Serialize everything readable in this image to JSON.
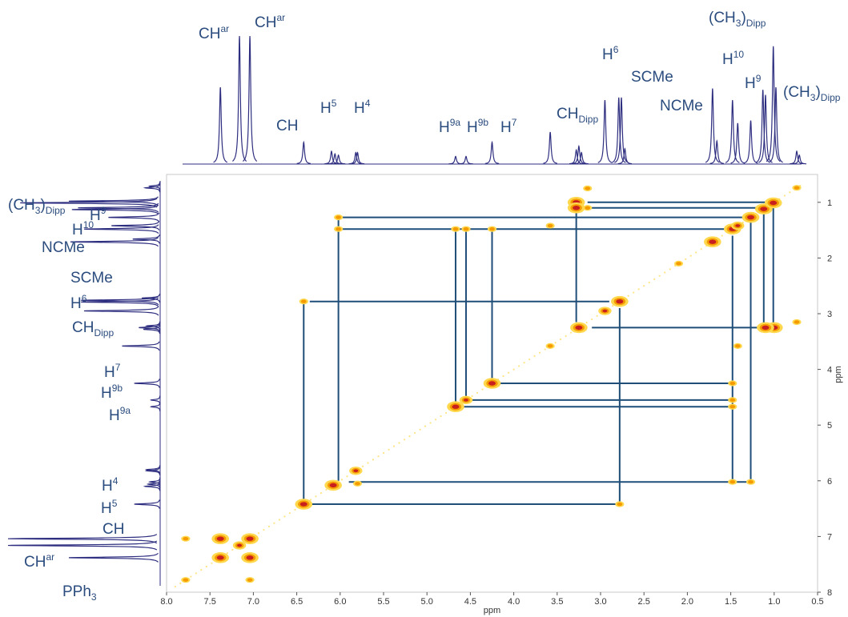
{
  "chart_data": {
    "type": "cosy",
    "x_label": "ppm",
    "y_label": "ppm",
    "xlim": [
      8,
      0.5
    ],
    "ylim": [
      0.5,
      8
    ],
    "xticks": [
      {
        "value": 8,
        "label": "8.0"
      },
      7.5,
      {
        "value": 7,
        "label": "7.0"
      },
      6.5,
      {
        "value": 6,
        "label": "6.0"
      },
      5.5,
      {
        "value": 5,
        "label": "5.0"
      },
      4.5,
      {
        "value": 4,
        "label": "4.0"
      },
      3.5,
      {
        "value": 3,
        "label": "3.0"
      },
      2.5,
      {
        "value": 2,
        "label": "2.0"
      },
      1.5,
      {
        "value": 1,
        "label": "1.0"
      },
      0.5
    ],
    "yticks": [
      1,
      2,
      3,
      4,
      5,
      6,
      7,
      8
    ],
    "spectrum_color": "#2e2e80",
    "connector_color": "#1f4e79",
    "peak_colors": [
      "#ffd84d",
      "#f59b00",
      "#c8201e"
    ],
    "peaks": [
      [
        7.38,
        60
      ],
      [
        7.16,
        100
      ],
      [
        7.04,
        100
      ],
      [
        6.42,
        17
      ],
      [
        6.1,
        10
      ],
      [
        6.06,
        8
      ],
      [
        6.02,
        7
      ],
      [
        5.82,
        9
      ],
      [
        5.8,
        9
      ],
      [
        4.67,
        6
      ],
      [
        4.55,
        6
      ],
      [
        4.25,
        17
      ],
      [
        3.58,
        25
      ],
      [
        3.28,
        11
      ],
      [
        3.25,
        14
      ],
      [
        3.22,
        9
      ],
      [
        2.95,
        50
      ],
      [
        2.79,
        52
      ],
      [
        2.76,
        52
      ],
      [
        2.72,
        12
      ],
      [
        1.71,
        59
      ],
      [
        1.66,
        18
      ],
      [
        1.48,
        50
      ],
      [
        1.42,
        32
      ],
      [
        1.27,
        34
      ],
      [
        1.13,
        58
      ],
      [
        1.1,
        54
      ],
      [
        1.01,
        92
      ],
      [
        0.98,
        60
      ],
      [
        0.74,
        10
      ],
      [
        0.71,
        7
      ]
    ],
    "crosspeaks": [
      [
        7.38,
        7.38,
        3
      ],
      [
        7.04,
        7.04,
        3
      ],
      [
        7.16,
        7.16,
        2
      ],
      [
        6.42,
        6.42,
        3
      ],
      [
        6.08,
        6.08,
        3
      ],
      [
        5.82,
        5.82,
        2
      ],
      [
        4.67,
        4.67,
        3
      ],
      [
        4.55,
        4.55,
        2
      ],
      [
        4.25,
        4.25,
        3
      ],
      [
        3.58,
        3.58,
        1
      ],
      [
        3.25,
        3.25,
        3
      ],
      [
        2.95,
        2.95,
        2
      ],
      [
        2.78,
        2.78,
        3
      ],
      [
        1.71,
        1.71,
        3
      ],
      [
        1.48,
        1.48,
        3
      ],
      [
        1.42,
        1.42,
        2
      ],
      [
        1.27,
        1.27,
        3
      ],
      [
        1.12,
        1.12,
        3
      ],
      [
        1.01,
        1.01,
        3
      ],
      [
        0.74,
        0.74,
        1
      ],
      [
        7.78,
        7.78,
        1
      ],
      [
        2.1,
        2.1,
        1
      ],
      [
        7.38,
        7.04,
        3
      ],
      [
        7.04,
        7.38,
        3
      ],
      [
        7.78,
        7.04,
        1
      ],
      [
        7.04,
        7.78,
        1
      ],
      [
        3.28,
        1.0,
        3
      ],
      [
        3.28,
        1.1,
        3
      ],
      [
        3.15,
        0.75,
        1
      ],
      [
        3.15,
        1.1,
        1
      ],
      [
        1.0,
        3.25,
        3
      ],
      [
        1.1,
        3.25,
        3
      ],
      [
        0.74,
        3.15,
        1
      ],
      [
        6.42,
        2.78,
        1
      ],
      [
        2.78,
        6.42,
        1
      ],
      [
        6.02,
        1.27,
        1
      ],
      [
        6.02,
        1.48,
        1
      ],
      [
        1.48,
        6.02,
        1
      ],
      [
        1.27,
        6.02,
        1
      ],
      [
        5.8,
        6.05,
        1
      ],
      [
        4.67,
        1.48,
        1
      ],
      [
        4.55,
        1.48,
        1
      ],
      [
        4.25,
        1.48,
        1
      ],
      [
        1.48,
        4.67,
        1
      ],
      [
        1.48,
        4.55,
        1
      ],
      [
        1.48,
        4.25,
        1
      ],
      [
        3.58,
        1.42,
        1
      ],
      [
        1.42,
        3.58,
        1
      ]
    ],
    "connectors": [
      [
        6.02,
        1.27,
        1.27,
        1.27
      ],
      [
        6.02,
        1.48,
        1.48,
        1.48
      ],
      [
        3.15,
        1.0,
        1.01,
        1.0
      ],
      [
        3.15,
        1.1,
        1.12,
        1.1
      ],
      [
        6.35,
        2.78,
        2.9,
        2.78
      ],
      [
        3.1,
        3.25,
        1.1,
        3.25
      ],
      [
        4.2,
        4.25,
        1.5,
        4.25
      ],
      [
        4.5,
        4.55,
        1.5,
        4.55
      ],
      [
        4.6,
        4.67,
        1.5,
        4.67
      ],
      [
        5.9,
        6.02,
        1.3,
        6.02
      ],
      [
        6.35,
        6.42,
        2.8,
        6.42
      ],
      [
        6.42,
        2.78,
        6.42,
        6.42
      ],
      [
        6.02,
        1.27,
        6.02,
        6.0
      ],
      [
        4.67,
        1.5,
        4.67,
        4.67
      ],
      [
        4.55,
        1.5,
        4.55,
        4.55
      ],
      [
        4.25,
        1.5,
        4.25,
        4.2
      ],
      [
        3.28,
        1.0,
        3.28,
        3.15
      ],
      [
        2.78,
        2.9,
        2.78,
        6.42
      ],
      [
        1.48,
        1.6,
        1.48,
        6.02
      ],
      [
        1.27,
        1.35,
        1.27,
        6.02
      ],
      [
        1.12,
        1.2,
        1.12,
        3.2
      ],
      [
        1.01,
        1.1,
        1.01,
        3.2
      ]
    ],
    "top_labels": [
      [
        {
          "t": "CH"
        },
        {
          "t": "ar",
          "s": "sup"
        }
      ],
      [
        {
          "t": "CH"
        },
        {
          "t": "ar",
          "s": "sup"
        }
      ],
      [
        {
          "t": "CH"
        }
      ],
      [
        {
          "t": "H"
        },
        {
          "t": "5",
          "s": "sup"
        }
      ],
      [
        {
          "t": "H"
        },
        {
          "t": "4",
          "s": "sup"
        }
      ],
      [
        {
          "t": "H"
        },
        {
          "t": "9a",
          "s": "sup"
        }
      ],
      [
        {
          "t": "H"
        },
        {
          "t": "9b",
          "s": "sup"
        }
      ],
      [
        {
          "t": "H"
        },
        {
          "t": "7",
          "s": "sup"
        }
      ],
      [
        {
          "t": "CH"
        },
        {
          "t": "Dipp",
          "s": "sub"
        }
      ],
      [
        {
          "t": "H"
        },
        {
          "t": "6",
          "s": "sup"
        }
      ],
      [
        {
          "t": "SCMe"
        }
      ],
      [
        {
          "t": "NCMe"
        }
      ],
      [
        {
          "t": "(CH"
        },
        {
          "t": "3",
          "s": "sub"
        },
        {
          "t": ")"
        },
        {
          "t": "Dipp",
          "s": "sub"
        }
      ],
      [
        {
          "t": "H"
        },
        {
          "t": "10",
          "s": "sup"
        }
      ],
      [
        {
          "t": "H"
        },
        {
          "t": "9",
          "s": "sup"
        }
      ],
      [
        {
          "t": "(CH"
        },
        {
          "t": "3",
          "s": "sub"
        },
        {
          "t": ")"
        },
        {
          "t": "Dipp",
          "s": "sub"
        }
      ]
    ],
    "left_labels": [
      [
        {
          "t": "(CH"
        },
        {
          "t": "3",
          "s": "sub"
        },
        {
          "t": ")"
        },
        {
          "t": "Dipp",
          "s": "sub"
        }
      ],
      [
        {
          "t": "H"
        },
        {
          "t": "9",
          "s": "sup"
        }
      ],
      [
        {
          "t": "H"
        },
        {
          "t": "10",
          "s": "sup"
        }
      ],
      [
        {
          "t": "NCMe"
        }
      ],
      [
        {
          "t": "SCMe"
        }
      ],
      [
        {
          "t": "H"
        },
        {
          "t": "6",
          "s": "sup"
        }
      ],
      [
        {
          "t": "CH"
        },
        {
          "t": "Dipp",
          "s": "sub"
        }
      ],
      [
        {
          "t": "H"
        },
        {
          "t": "7",
          "s": "sup"
        }
      ],
      [
        {
          "t": "H"
        },
        {
          "t": "9b",
          "s": "sup"
        }
      ],
      [
        {
          "t": "H"
        },
        {
          "t": "9a",
          "s": "sup"
        }
      ],
      [
        {
          "t": "H"
        },
        {
          "t": "4",
          "s": "sup"
        }
      ],
      [
        {
          "t": "H"
        },
        {
          "t": "5",
          "s": "sup"
        }
      ],
      [
        {
          "t": "CH"
        }
      ],
      [
        {
          "t": "CH"
        },
        {
          "t": "ar",
          "s": "sup"
        }
      ],
      [
        {
          "t": "PPh"
        },
        {
          "t": "3",
          "s": "sub"
        }
      ]
    ]
  }
}
